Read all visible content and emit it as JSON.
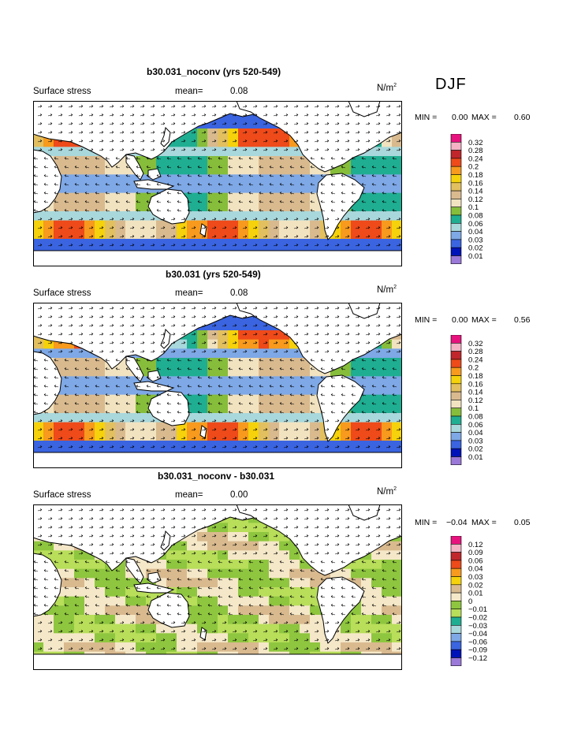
{
  "season": "DJF",
  "panels": [
    {
      "title": "b30.031_noconv (yrs 520-549)",
      "field": "Surface stress",
      "mean_label": "mean=",
      "mean_value": "0.08",
      "units": "N/m",
      "units_exp": "2",
      "min_label": "MIN =",
      "min_value": "0.00",
      "max_label": "MAX =",
      "max_value": "0.60",
      "levels": [
        "0.32",
        "0.28",
        "0.24",
        "0.2",
        "0.18",
        "0.16",
        "0.14",
        "0.12",
        "0.1",
        "0.08",
        "0.06",
        "0.04",
        "0.03",
        "0.02",
        "0.01"
      ]
    },
    {
      "title": "b30.031 (yrs 520-549)",
      "field": "Surface stress",
      "mean_label": "mean=",
      "mean_value": "0.08",
      "units": "N/m",
      "units_exp": "2",
      "min_label": "MIN =",
      "min_value": "0.00",
      "max_label": "MAX =",
      "max_value": "0.56",
      "levels": [
        "0.32",
        "0.28",
        "0.24",
        "0.2",
        "0.18",
        "0.16",
        "0.14",
        "0.12",
        "0.1",
        "0.08",
        "0.06",
        "0.04",
        "0.03",
        "0.02",
        "0.01"
      ]
    },
    {
      "title": "b30.031_noconv - b30.031",
      "field": "Surface stress",
      "mean_label": "mean=",
      "mean_value": "0.00",
      "units": "N/m",
      "units_exp": "2",
      "min_label": "MIN =",
      "min_value": "−0.04",
      "max_label": "MAX =",
      "max_value": "0.05",
      "levels": [
        "0.12",
        "0.09",
        "0.06",
        "0.04",
        "0.03",
        "0.02",
        "0.01",
        "0",
        "−0.01",
        "−0.02",
        "−0.03",
        "−0.04",
        "−0.06",
        "−0.09",
        "−0.12"
      ]
    }
  ],
  "colors": {
    "absolute": [
      "#e8127e",
      "#f4b2c4",
      "#c0262b",
      "#ee4a1a",
      "#f79a1d",
      "#f5d20b",
      "#e3c05f",
      "#d9ba8f",
      "#f2e3c0",
      "#86bd3a",
      "#1fae92",
      "#a9d8dc",
      "#7ea8e6",
      "#3a64e0",
      "#0013b8",
      "#9a79d8"
    ],
    "difference": [
      "#e8127e",
      "#f4b2c4",
      "#c0262b",
      "#ee4a1a",
      "#f79a1d",
      "#f5d20b",
      "#d9ba8f",
      "#f5e8c8",
      "#8ec63f",
      "#b8de5a",
      "#1fae92",
      "#a9d8dc",
      "#7ea8e6",
      "#3a64e0",
      "#0013b8",
      "#9a79d8"
    ]
  }
}
